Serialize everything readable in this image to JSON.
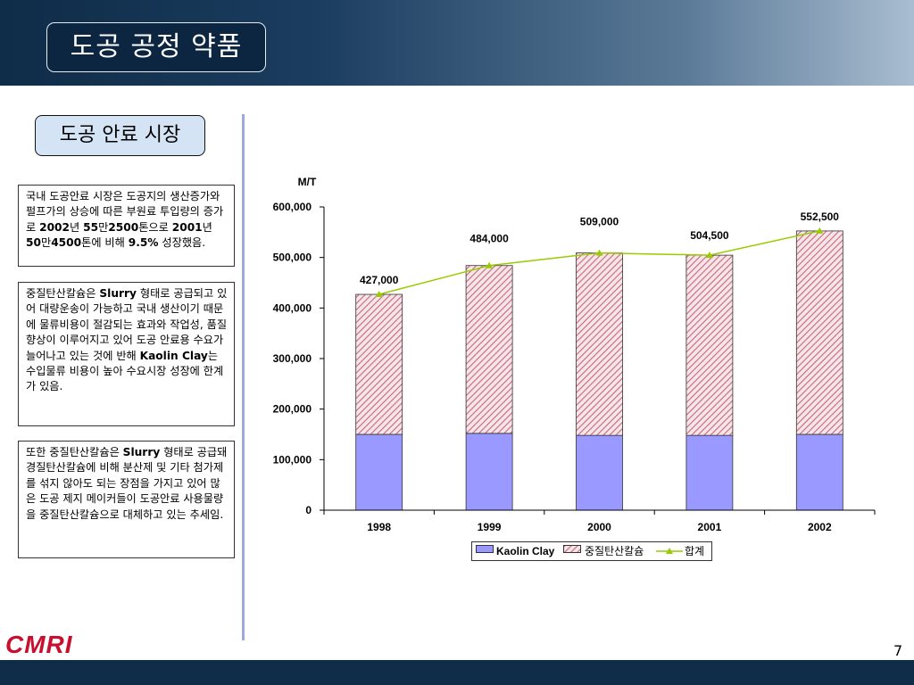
{
  "slide": {
    "title": "도공 공정 약품",
    "section_label": "도공 안료 시장",
    "logo_text": "CMRI",
    "page_number": "7",
    "colors": {
      "header_dark": "#0f2c48",
      "kaolin_fill": "#9999ff",
      "gcc_hatch": "#cc6677",
      "total_line": "#99cc00"
    }
  },
  "text_blocks": [
    {
      "runs": [
        {
          "t": "국내 도공안료 시장은 도공지의 생산증가와 펄프가의 상승에 따른 부원료 투입량의 증가로 ",
          "b": false
        },
        {
          "t": "2002",
          "b": true
        },
        {
          "t": "년 ",
          "b": false
        },
        {
          "t": "55",
          "b": true
        },
        {
          "t": "만",
          "b": false
        },
        {
          "t": "2500",
          "b": true
        },
        {
          "t": "톤으로 ",
          "b": false
        },
        {
          "t": "2001",
          "b": true
        },
        {
          "t": "년 ",
          "b": false
        },
        {
          "t": "50",
          "b": true
        },
        {
          "t": "만",
          "b": false
        },
        {
          "t": "4500",
          "b": true
        },
        {
          "t": "톤에 비해 ",
          "b": false
        },
        {
          "t": "9.5%",
          "b": true
        },
        {
          "t": " 성장했음.",
          "b": false
        }
      ]
    },
    {
      "runs": [
        {
          "t": "중질탄산칼슘은 ",
          "b": false
        },
        {
          "t": "Slurry",
          "b": true
        },
        {
          "t": " 형태로 공급되고 있어 대량운송이 가능하고 국내 생산이기 때문에 물류비용이 절감되는 효과와 작업성, 품질 향상이 이루어지고 있어 도공 안료용 수요가 늘어나고 있는 것에 반해 ",
          "b": false
        },
        {
          "t": "Kaolin Clay",
          "b": true
        },
        {
          "t": "는 수입물류 비용이 높아 수요시장 성장에 한계가 있음.",
          "b": false
        }
      ]
    },
    {
      "runs": [
        {
          "t": "또한 중질탄산칼슘은 ",
          "b": false
        },
        {
          "t": "Slurry",
          "b": true
        },
        {
          "t": " 형태로 공급돼 경질탄산칼슘에 비해 분산제 및 기타 첨가제를 섞지 않아도 되는 장점을 가지고 있어 많은 도공 제지 메이커들이 도공안료 사용물량을 중질탄산칼슘으로 대체하고 있는 추세임.",
          "b": false
        }
      ]
    }
  ],
  "chart_data": {
    "type": "bar",
    "stacked": true,
    "categories": [
      "1998",
      "1999",
      "2000",
      "2001",
      "2002"
    ],
    "series": [
      {
        "name": "Kaolin Clay",
        "kind": "bar",
        "values": [
          150000,
          152000,
          148000,
          148000,
          150000
        ]
      },
      {
        "name": "중질탄산칼슘",
        "kind": "bar",
        "values": [
          277000,
          332000,
          361000,
          356500,
          402500
        ]
      },
      {
        "name": "합계",
        "kind": "line",
        "values": [
          427000,
          484000,
          509000,
          504500,
          552500
        ]
      }
    ],
    "data_labels": [
      "427,000",
      "484,000",
      "509,000",
      "504,500",
      "552,500"
    ],
    "ylabel": "M/T",
    "ylim": [
      0,
      600000
    ],
    "yticks": [
      0,
      100000,
      200000,
      300000,
      400000,
      500000,
      600000
    ],
    "ytick_labels": [
      "0",
      "100,000",
      "200,000",
      "300,000",
      "400,000",
      "500,000",
      "600,000"
    ],
    "grid": false,
    "legend_position": "bottom"
  }
}
